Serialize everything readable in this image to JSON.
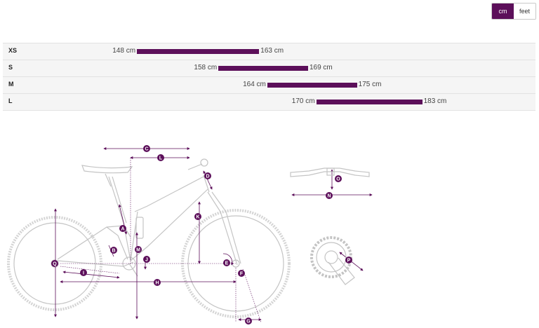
{
  "unit_toggle": {
    "options": [
      "cm",
      "feet"
    ],
    "selected": "cm"
  },
  "sizes": [
    {
      "label": "XS",
      "min": "148 cm",
      "max": "163 cm",
      "min_value": 148,
      "max_value": 163
    },
    {
      "label": "S",
      "min": "158 cm",
      "max": "169 cm",
      "min_value": 158,
      "max_value": 169
    },
    {
      "label": "M",
      "min": "164 cm",
      "max": "175 cm",
      "min_value": 164,
      "max_value": 175
    },
    {
      "label": "L",
      "min": "170 cm",
      "max": "183 cm",
      "min_value": 170,
      "max_value": 183
    }
  ],
  "height_scale": {
    "min": 135,
    "max": 195
  },
  "geometry_markers": [
    "A",
    "B",
    "C",
    "D",
    "E",
    "F",
    "G",
    "H",
    "I",
    "J",
    "K",
    "L",
    "M",
    "N",
    "O",
    "P",
    "Q"
  ],
  "colors": {
    "accent": "#5c0f5a",
    "row_bg": "#f5f5f5",
    "line": "#c4c4c4"
  }
}
